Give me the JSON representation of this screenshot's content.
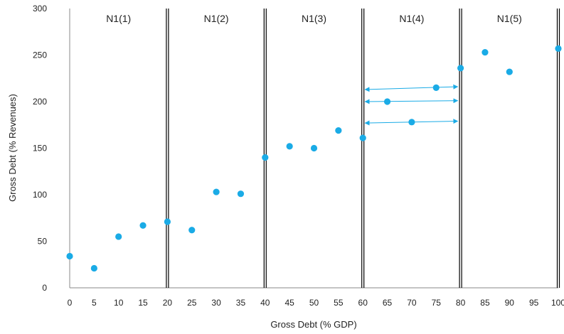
{
  "chart_data": {
    "type": "scatter",
    "xlabel": "Gross Debt (% GDP)",
    "ylabel": "Gross Debt (% Revenues)",
    "xlim": [
      0,
      100
    ],
    "ylim": [
      0,
      300
    ],
    "x_ticks": [
      "0",
      "5",
      "10",
      "15",
      "20",
      "25",
      "30",
      "35",
      "40",
      "45",
      "50",
      "55",
      "60",
      "65",
      "70",
      "75",
      "80",
      "85",
      "90",
      "95",
      "100"
    ],
    "y_ticks": [
      "0",
      "50",
      "100",
      "150",
      "200",
      "250",
      "300"
    ],
    "grid": false,
    "point_color": "#1AABE6",
    "line_color": "#000000",
    "series": [
      {
        "points": [
          {
            "x": 0,
            "y": 34
          },
          {
            "x": 5,
            "y": 21
          },
          {
            "x": 10,
            "y": 55
          },
          {
            "x": 15,
            "y": 67
          },
          {
            "x": 20,
            "y": 71
          },
          {
            "x": 25,
            "y": 62
          },
          {
            "x": 30,
            "y": 103
          },
          {
            "x": 35,
            "y": 101
          },
          {
            "x": 40,
            "y": 140
          },
          {
            "x": 45,
            "y": 152
          },
          {
            "x": 50,
            "y": 150
          },
          {
            "x": 55,
            "y": 169
          },
          {
            "x": 60,
            "y": 161
          },
          {
            "x": 65,
            "y": 200
          },
          {
            "x": 70,
            "y": 178
          },
          {
            "x": 75,
            "y": 215
          },
          {
            "x": 80,
            "y": 236
          },
          {
            "x": 85,
            "y": 253
          },
          {
            "x": 90,
            "y": 232
          },
          {
            "x": 100,
            "y": 257
          }
        ]
      }
    ],
    "dividers": [
      20,
      40,
      60,
      80,
      100
    ],
    "regions": [
      {
        "label": "N1(1)",
        "x": 10
      },
      {
        "label": "N1(2)",
        "x": 30
      },
      {
        "label": "N1(3)",
        "x": 50
      },
      {
        "label": "N1(4)",
        "x": 70
      },
      {
        "label": "N1(5)",
        "x": 90
      }
    ],
    "arrows": [
      {
        "x1": 60,
        "x2": 80,
        "y1": 213,
        "y2": 216
      },
      {
        "x1": 60,
        "x2": 80,
        "y1": 200,
        "y2": 201
      },
      {
        "x1": 60,
        "x2": 80,
        "y1": 177,
        "y2": 179
      }
    ]
  }
}
